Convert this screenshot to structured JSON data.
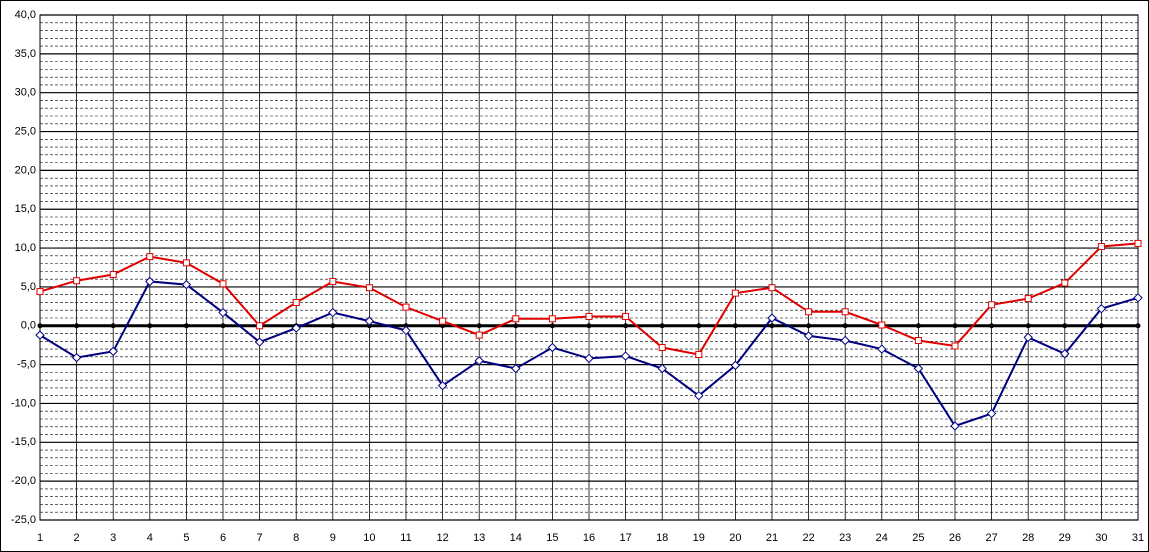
{
  "chart_data": {
    "type": "line",
    "categories": [
      "1",
      "2",
      "3",
      "4",
      "5",
      "6",
      "7",
      "8",
      "9",
      "10",
      "11",
      "12",
      "13",
      "14",
      "15",
      "16",
      "17",
      "18",
      "19",
      "20",
      "21",
      "22",
      "23",
      "24",
      "25",
      "26",
      "27",
      "28",
      "29",
      "30",
      "31"
    ],
    "series": [
      {
        "color": "#e00000",
        "marker": "square",
        "values": [
          4.4,
          5.8,
          6.6,
          8.9,
          8.1,
          5.4,
          0.0,
          3.0,
          5.7,
          4.9,
          2.4,
          0.6,
          -1.2,
          0.9,
          0.9,
          1.2,
          1.2,
          -2.8,
          -3.7,
          4.2,
          4.9,
          1.8,
          1.8,
          0.1,
          -1.9,
          -2.6,
          2.7,
          3.5,
          5.5,
          10.2,
          10.6
        ]
      },
      {
        "color": "#000080",
        "marker": "diamond",
        "values": [
          -1.2,
          -4.1,
          -3.3,
          5.7,
          5.3,
          1.7,
          -2.1,
          -0.3,
          1.7,
          0.6,
          -0.6,
          -7.7,
          -4.5,
          -5.5,
          -2.8,
          -4.2,
          -3.9,
          -5.5,
          -9.0,
          -5.1,
          1.0,
          -1.3,
          -1.9,
          -3.0,
          -5.5,
          -12.9,
          -11.3,
          -1.5,
          -3.6,
          2.2,
          3.6
        ]
      }
    ],
    "ylim": [
      -25,
      40
    ],
    "yticks": [
      {
        "value": -25,
        "label": "-25,0"
      },
      {
        "value": -20,
        "label": "-20,0"
      },
      {
        "value": -15,
        "label": "-15,0"
      },
      {
        "value": -10,
        "label": "-10,0"
      },
      {
        "value": -5,
        "label": "-5,0"
      },
      {
        "value": 0,
        "label": "0,0"
      },
      {
        "value": 5,
        "label": "5,0"
      },
      {
        "value": 10,
        "label": "10,0"
      },
      {
        "value": 15,
        "label": "15,0"
      },
      {
        "value": 20,
        "label": "20,0"
      },
      {
        "value": 25,
        "label": "25,0"
      },
      {
        "value": 30,
        "label": "30,0"
      },
      {
        "value": 35,
        "label": "35,0"
      },
      {
        "value": 40,
        "label": "40,0"
      }
    ],
    "grid": true,
    "minor_grid_step": 1
  }
}
